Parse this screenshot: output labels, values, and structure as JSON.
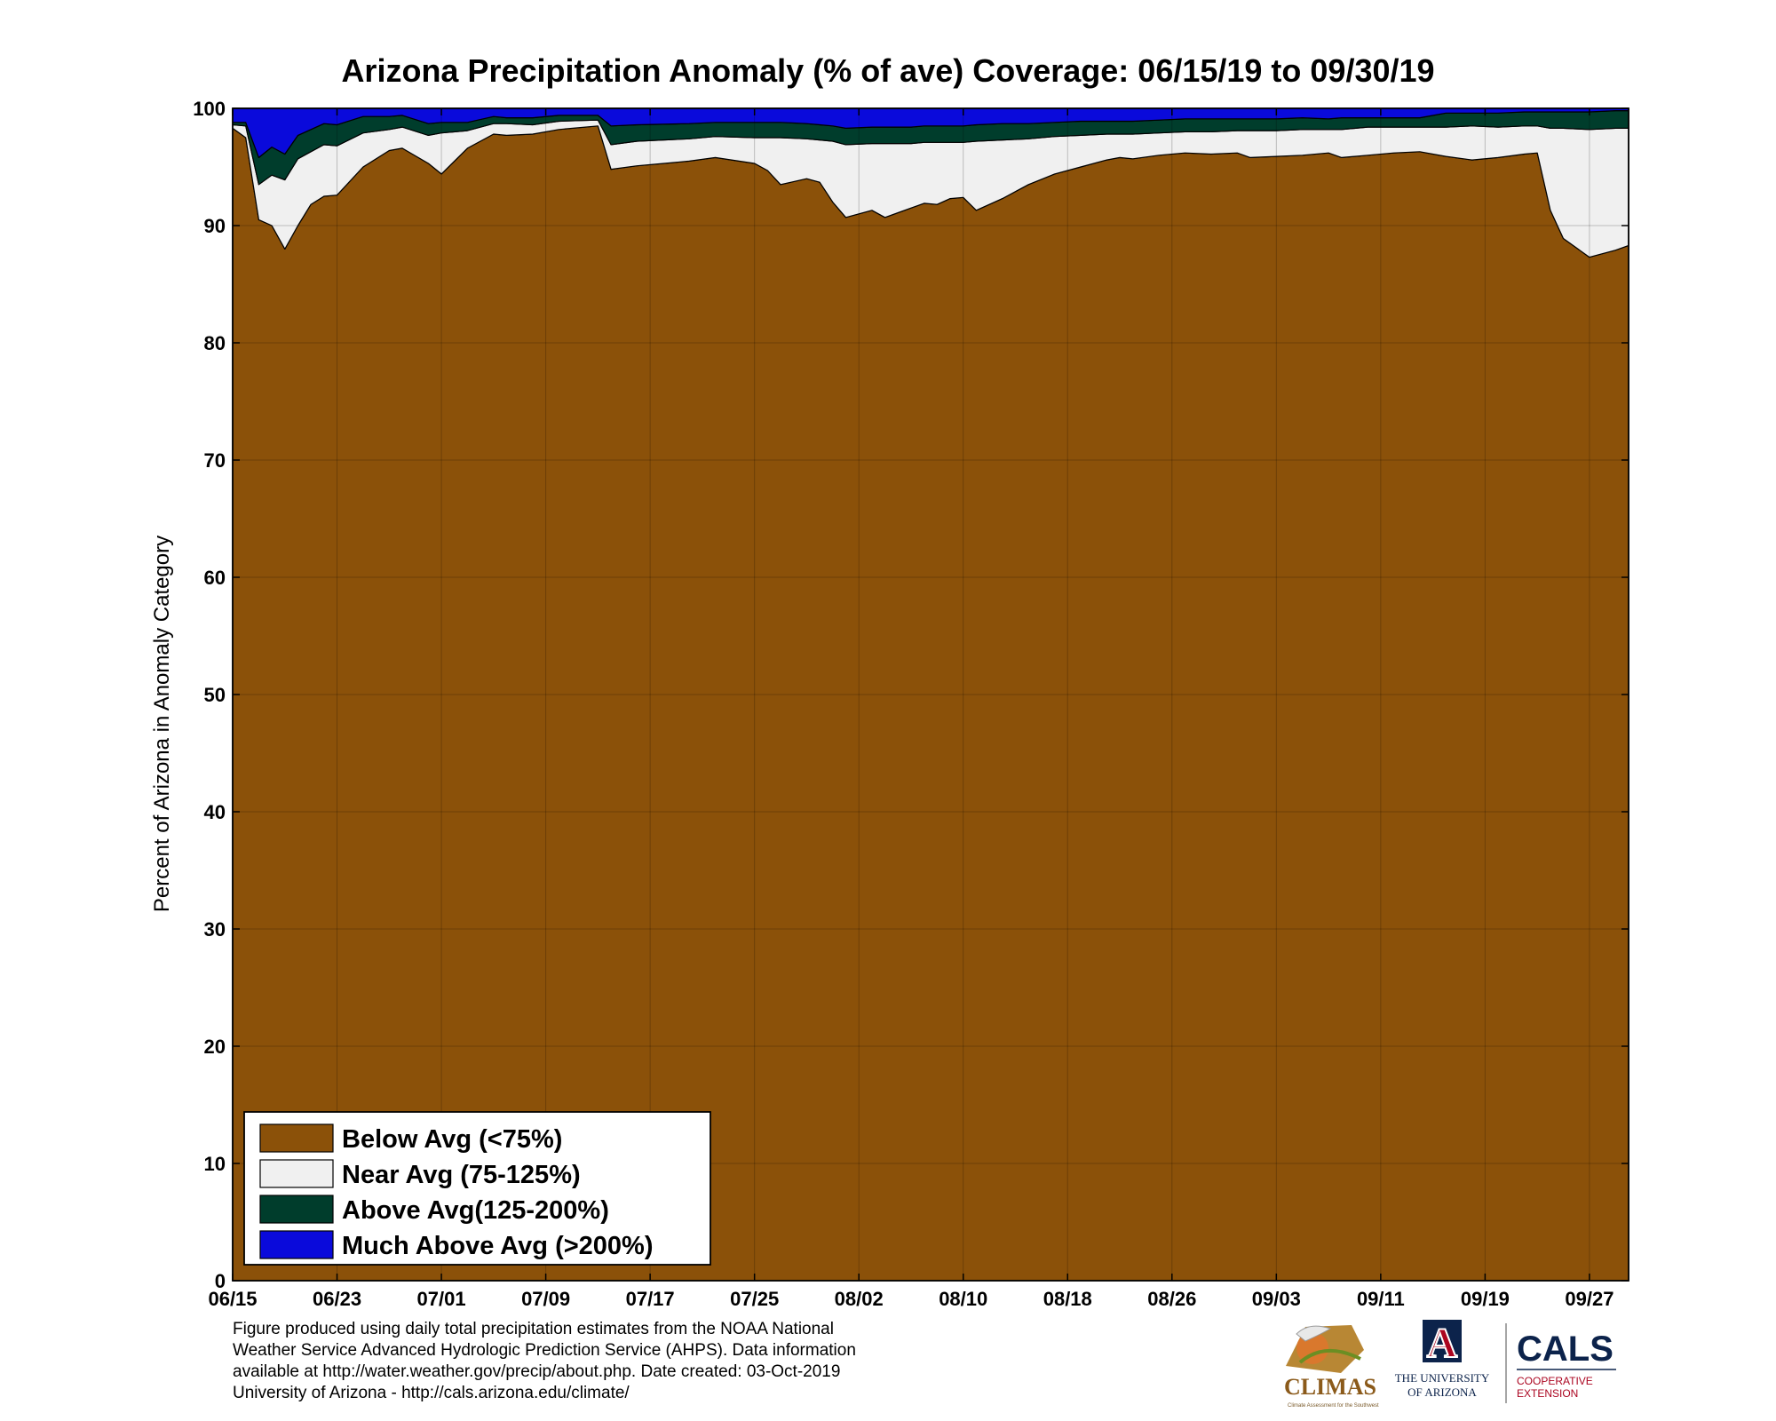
{
  "chart_data": {
    "type": "area",
    "stacked": true,
    "title": "Arizona Precipitation Anomaly (% of ave) Coverage: 06/15/19 to 09/30/19",
    "xlabel": "",
    "ylabel": "Percent of Arizona in Anomaly Category",
    "ylim": [
      0,
      100
    ],
    "yticks": [
      "0",
      "10",
      "20",
      "30",
      "40",
      "50",
      "60",
      "70",
      "80",
      "90",
      "100"
    ],
    "xlim": [
      "2019-06-15",
      "2019-09-30"
    ],
    "xtick_labels": [
      "06/15",
      "06/23",
      "07/01",
      "07/09",
      "07/17",
      "07/25",
      "08/02",
      "08/10",
      "08/18",
      "08/26",
      "09/03",
      "09/11",
      "09/19",
      "09/27"
    ],
    "grid": true,
    "legend_position": "bottom-left",
    "x": [
      "2019-06-15",
      "2019-06-16",
      "2019-06-17",
      "2019-06-18",
      "2019-06-19",
      "2019-06-20",
      "2019-06-21",
      "2019-06-22",
      "2019-06-23",
      "2019-06-25",
      "2019-06-27",
      "2019-06-28",
      "2019-06-30",
      "2019-07-01",
      "2019-07-03",
      "2019-07-05",
      "2019-07-06",
      "2019-07-08",
      "2019-07-10",
      "2019-07-13",
      "2019-07-14",
      "2019-07-16",
      "2019-07-20",
      "2019-07-22",
      "2019-07-25",
      "2019-07-26",
      "2019-07-27",
      "2019-07-29",
      "2019-07-30",
      "2019-07-31",
      "2019-08-01",
      "2019-08-03",
      "2019-08-04",
      "2019-08-06",
      "2019-08-07",
      "2019-08-08",
      "2019-08-09",
      "2019-08-10",
      "2019-08-11",
      "2019-08-13",
      "2019-08-15",
      "2019-08-17",
      "2019-08-19",
      "2019-08-21",
      "2019-08-22",
      "2019-08-23",
      "2019-08-25",
      "2019-08-27",
      "2019-08-29",
      "2019-08-31",
      "2019-09-01",
      "2019-09-03",
      "2019-09-05",
      "2019-09-07",
      "2019-09-08",
      "2019-09-10",
      "2019-09-12",
      "2019-09-14",
      "2019-09-16",
      "2019-09-18",
      "2019-09-20",
      "2019-09-22",
      "2019-09-23",
      "2019-09-24",
      "2019-09-25",
      "2019-09-27",
      "2019-09-29",
      "2019-09-30"
    ],
    "series": [
      {
        "name": "Below Avg (<75%)",
        "color": "#8B5109",
        "values": [
          98.3,
          97.5,
          90.5,
          90.0,
          88.0,
          90.0,
          91.8,
          92.5,
          92.6,
          95.0,
          96.4,
          96.6,
          95.3,
          94.4,
          96.6,
          97.8,
          97.7,
          97.8,
          98.2,
          98.5,
          94.8,
          95.1,
          95.5,
          95.8,
          95.3,
          94.7,
          93.5,
          94.0,
          93.7,
          92.0,
          90.7,
          91.3,
          90.7,
          91.5,
          91.9,
          91.8,
          92.3,
          92.4,
          91.3,
          92.3,
          93.5,
          94.4,
          95.0,
          95.6,
          95.8,
          95.7,
          96.0,
          96.2,
          96.1,
          96.2,
          95.8,
          95.9,
          96.0,
          96.2,
          95.8,
          96.0,
          96.2,
          96.3,
          95.9,
          95.6,
          95.8,
          96.1,
          96.2,
          91.3,
          88.9,
          87.3,
          87.9,
          88.3
        ]
      },
      {
        "name": "Near Avg (75-125%)",
        "color": "#F0F0F0",
        "values": [
          0.3,
          1.0,
          3.0,
          4.3,
          5.9,
          5.7,
          4.5,
          4.4,
          4.2,
          2.9,
          1.8,
          1.8,
          2.4,
          3.5,
          1.5,
          0.9,
          1.0,
          0.8,
          0.7,
          0.5,
          2.1,
          2.1,
          1.9,
          1.8,
          2.2,
          2.8,
          4.0,
          3.4,
          3.6,
          5.2,
          6.2,
          5.7,
          6.3,
          5.5,
          5.2,
          5.3,
          4.8,
          4.7,
          5.9,
          5.0,
          3.9,
          3.2,
          2.7,
          2.2,
          2.0,
          2.1,
          1.9,
          1.8,
          1.9,
          1.9,
          2.3,
          2.2,
          2.2,
          2.0,
          2.4,
          2.4,
          2.2,
          2.1,
          2.5,
          2.9,
          2.6,
          2.4,
          2.3,
          7.0,
          9.4,
          10.9,
          10.4,
          10.0
        ]
      },
      {
        "name": "Above Avg(125-200%)",
        "color": "#003D2C",
        "values": [
          0.2,
          0.3,
          2.3,
          2.4,
          2.2,
          2.0,
          1.9,
          1.8,
          1.8,
          1.4,
          1.1,
          1.0,
          1.0,
          0.9,
          0.7,
          0.6,
          0.5,
          0.6,
          0.5,
          0.4,
          1.6,
          1.4,
          1.3,
          1.2,
          1.3,
          1.3,
          1.3,
          1.3,
          1.3,
          1.3,
          1.4,
          1.4,
          1.4,
          1.4,
          1.4,
          1.4,
          1.4,
          1.4,
          1.4,
          1.4,
          1.3,
          1.2,
          1.2,
          1.1,
          1.1,
          1.1,
          1.1,
          1.1,
          1.1,
          1.0,
          1.0,
          1.0,
          1.0,
          0.9,
          1.0,
          0.8,
          0.8,
          0.8,
          1.2,
          1.1,
          1.2,
          1.2,
          1.2,
          1.4,
          1.4,
          1.5,
          1.5,
          1.5
        ]
      },
      {
        "name": "Much Above Avg (>200%)",
        "color": "#0A0ADB",
        "values": [
          1.2,
          1.2,
          4.2,
          3.3,
          3.9,
          2.3,
          1.8,
          1.3,
          1.4,
          0.7,
          0.7,
          0.6,
          1.3,
          1.2,
          1.2,
          0.7,
          0.8,
          0.8,
          0.6,
          0.6,
          1.5,
          1.4,
          1.3,
          1.2,
          1.2,
          1.2,
          1.2,
          1.3,
          1.4,
          1.5,
          1.7,
          1.6,
          1.6,
          1.6,
          1.5,
          1.5,
          1.5,
          1.5,
          1.4,
          1.3,
          1.3,
          1.2,
          1.1,
          1.1,
          1.1,
          1.1,
          1.0,
          0.9,
          0.9,
          0.9,
          0.9,
          0.9,
          0.8,
          0.9,
          0.8,
          0.8,
          0.8,
          0.8,
          0.4,
          0.4,
          0.4,
          0.3,
          0.3,
          0.3,
          0.3,
          0.3,
          0.2,
          0.2
        ]
      }
    ]
  },
  "footnote": {
    "line1": "Figure produced using daily total precipitation estimates from the NOAA National",
    "line2": "Weather Service Advanced Hydrologic Prediction Service (AHPS). Data information",
    "line3": "available at http://water.weather.gov/precip/about.php. Date created: 03-Oct-2019",
    "line4": "University of Arizona - http://cals.arizona.edu/climate/"
  },
  "logos": {
    "climas_name": "CLIMAS",
    "climas_tagline": "Climate Assessment for the Southwest",
    "ua_letter": "A",
    "ua_line1": "THE UNIVERSITY",
    "ua_line2": "OF ARIZONA",
    "cals_name": "CALS",
    "cals_line1": "COOPERATIVE",
    "cals_line2": "EXTENSION",
    "colors": {
      "ua_red": "#AB0520",
      "ua_navy": "#0C234B",
      "climas_gold": "#B07A1E",
      "climas_orange": "#D9782D"
    }
  }
}
